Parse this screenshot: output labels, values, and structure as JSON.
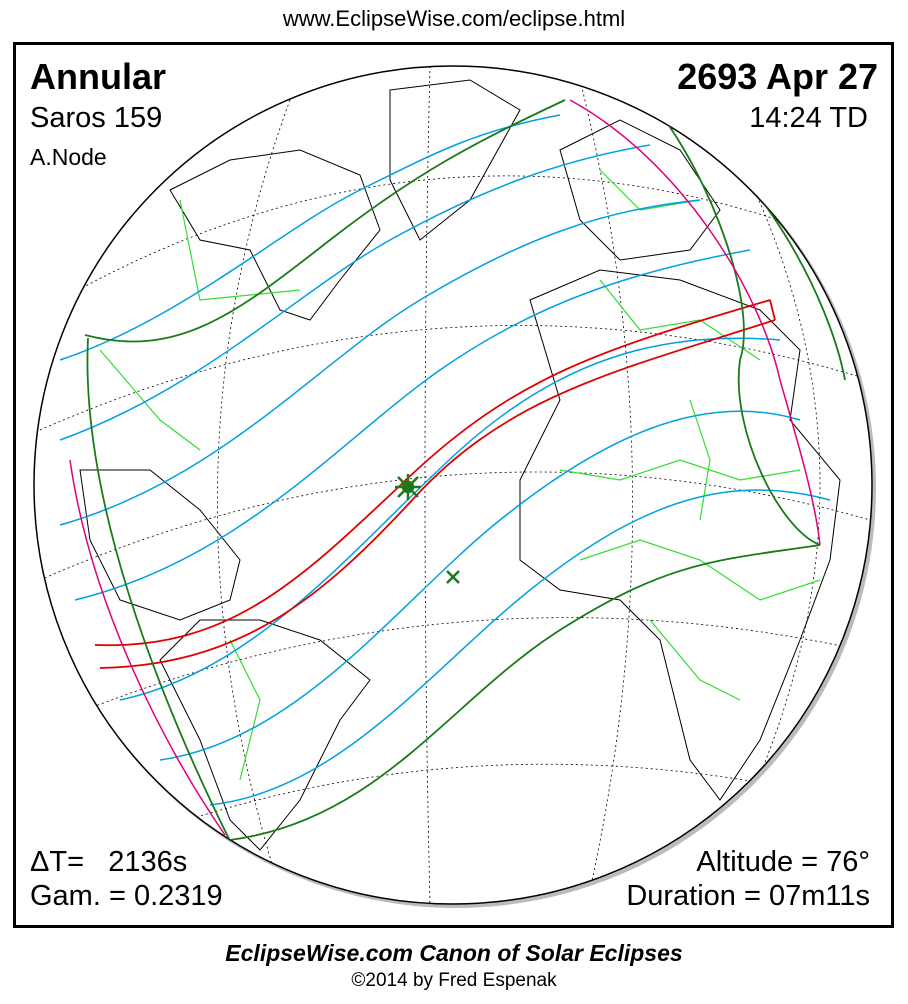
{
  "header": {
    "url": "www.EclipseWise.com/eclipse.html"
  },
  "map": {
    "eclipse_type": "Annular",
    "saros": "Saros 159",
    "node": "A.Node",
    "date": "2693 Apr 27",
    "time": "14:24 TD",
    "delta_t": "ΔT=   2136s",
    "gamma": "Gam. = 0.2319",
    "altitude": "Altitude = 76°",
    "duration": "Duration = 07m11s",
    "colors": {
      "central_path": "#e00000",
      "penumbral_limits": "#1a7a1a",
      "contours": "#00a0e0",
      "rise_set": "#e0007a",
      "borders": "#33dd33",
      "coast": "#000000"
    }
  },
  "footer": {
    "title": "EclipseWise.com Canon of Solar Eclipses",
    "copyright": "©2014 by Fred Espenak"
  }
}
